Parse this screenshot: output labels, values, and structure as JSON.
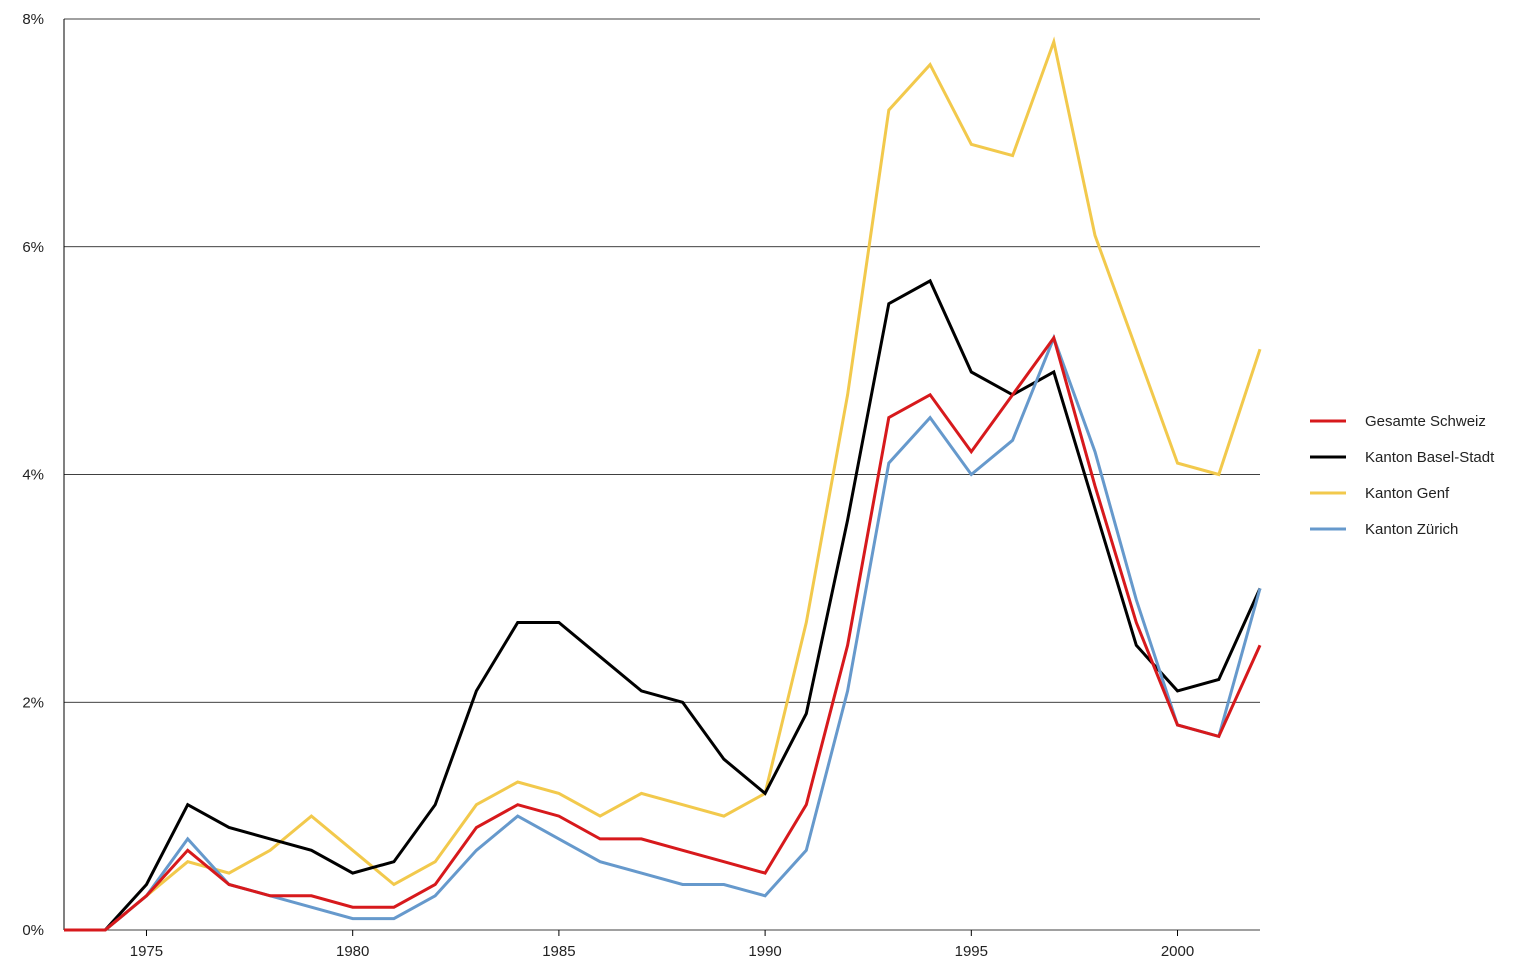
{
  "chart_data": {
    "type": "line",
    "title": "",
    "xlabel": "",
    "ylabel": "",
    "x": [
      1973,
      1974,
      1975,
      1976,
      1977,
      1978,
      1979,
      1980,
      1981,
      1982,
      1983,
      1984,
      1985,
      1986,
      1987,
      1988,
      1989,
      1990,
      1991,
      1992,
      1993,
      1994,
      1995,
      1996,
      1997,
      1998,
      1999,
      2000,
      2001,
      2002
    ],
    "xlim": [
      1973,
      2002
    ],
    "ylim": [
      0,
      8
    ],
    "x_ticks": [
      1975,
      1980,
      1985,
      1990,
      1995,
      2000
    ],
    "y_ticks": [
      0,
      2,
      4,
      6,
      8
    ],
    "y_tick_labels": [
      "0%",
      "2%",
      "4%",
      "6%",
      "8%"
    ],
    "grid": "horizontal",
    "legend_position": "right",
    "series": [
      {
        "name": "Kanton Genf",
        "color": "#f2c94c",
        "values": [
          0,
          0,
          0.3,
          0.6,
          0.5,
          0.7,
          1.0,
          0.7,
          0.4,
          0.6,
          1.1,
          1.3,
          1.2,
          1.0,
          1.2,
          1.1,
          1.0,
          1.2,
          2.7,
          4.7,
          7.2,
          7.6,
          6.9,
          6.8,
          7.8,
          6.1,
          5.1,
          4.1,
          4.0,
          5.1
        ]
      },
      {
        "name": "Kanton Basel-Stadt",
        "color": "#000000",
        "values": [
          0,
          0,
          0.4,
          1.1,
          0.9,
          0.8,
          0.7,
          0.5,
          0.6,
          1.1,
          2.1,
          2.7,
          2.7,
          2.4,
          2.1,
          2.0,
          1.5,
          1.2,
          1.9,
          3.6,
          5.5,
          5.7,
          4.9,
          4.7,
          4.9,
          3.7,
          2.5,
          2.1,
          2.2,
          3.0
        ]
      },
      {
        "name": "Kanton Zürich",
        "color": "#6699cc",
        "values": [
          0,
          0,
          0.3,
          0.8,
          0.4,
          0.3,
          0.2,
          0.1,
          0.1,
          0.3,
          0.7,
          1.0,
          0.8,
          0.6,
          0.5,
          0.4,
          0.4,
          0.3,
          0.7,
          2.1,
          4.1,
          4.5,
          4.0,
          4.3,
          5.2,
          4.2,
          2.9,
          1.8,
          1.7,
          3.0
        ]
      },
      {
        "name": "Gesamte Schweiz",
        "color": "#d7191c",
        "values": [
          0,
          0,
          0.3,
          0.7,
          0.4,
          0.3,
          0.3,
          0.2,
          0.2,
          0.4,
          0.9,
          1.1,
          1.0,
          0.8,
          0.8,
          0.7,
          0.6,
          0.5,
          1.1,
          2.5,
          4.5,
          4.7,
          4.2,
          4.7,
          5.2,
          3.9,
          2.7,
          1.8,
          1.7,
          2.5
        ]
      }
    ],
    "legend_order": [
      "Gesamte Schweiz",
      "Kanton Basel-Stadt",
      "Kanton Genf",
      "Kanton Zürich"
    ]
  },
  "colors": {
    "grid": "#000000",
    "axis": "#000000"
  }
}
